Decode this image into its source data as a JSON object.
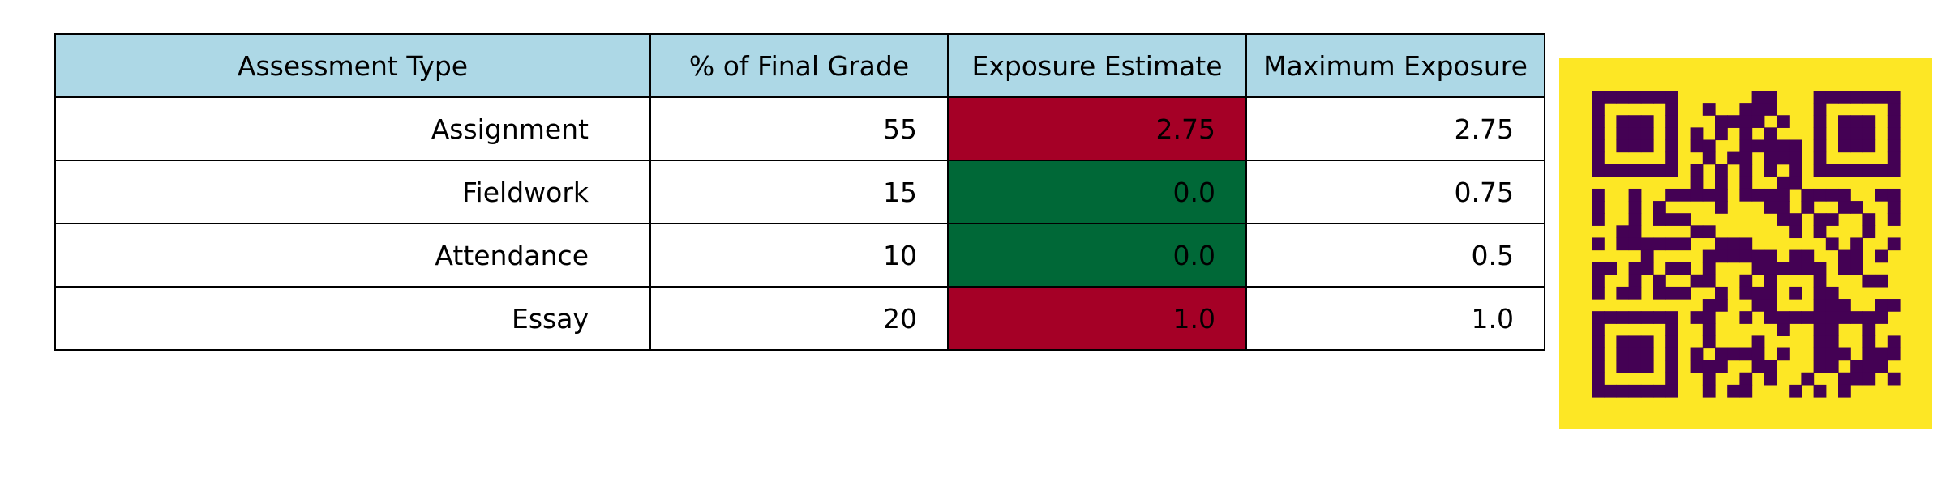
{
  "chart_data": {
    "type": "table",
    "columns": [
      "Assessment Type",
      "% of Final Grade",
      "Exposure Estimate",
      "Maximum Exposure"
    ],
    "rows": [
      {
        "type": "Assignment",
        "pct": "55",
        "exposure": "2.75",
        "max": "2.75",
        "exposure_status": "high"
      },
      {
        "type": "Fieldwork",
        "pct": "15",
        "exposure": "0.0",
        "max": "0.75",
        "exposure_status": "low"
      },
      {
        "type": "Attendance",
        "pct": "10",
        "exposure": "0.0",
        "max": "0.5",
        "exposure_status": "low"
      },
      {
        "type": "Essay",
        "pct": "20",
        "exposure": "1.0",
        "max": "1.0",
        "exposure_status": "high"
      }
    ]
  },
  "colors": {
    "header_bg": "#add8e6",
    "high_exposure": "#a50026",
    "low_exposure": "#006837",
    "cell_bg": "#ffffff",
    "qr_background": "#fde725",
    "qr_modules": "#440154"
  },
  "qr_code": {
    "icon": "qr-code-icon"
  }
}
